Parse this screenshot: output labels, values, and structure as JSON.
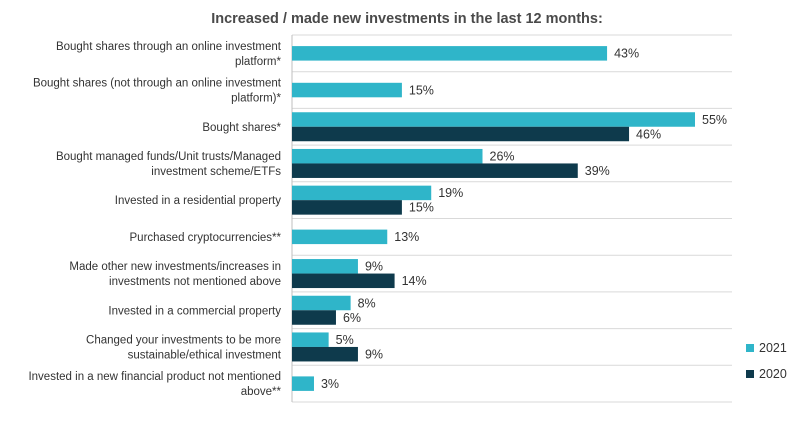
{
  "chart_data": {
    "type": "bar",
    "orientation": "horizontal",
    "title": "Increased / made new investments in the last 12 months:",
    "xlabel": "",
    "ylabel": "",
    "xlim": [
      0,
      56
    ],
    "grid": true,
    "legend_position": "right",
    "value_suffix": "%",
    "categories": [
      [
        "Bought shares through an online investment",
        "platform*"
      ],
      [
        "Bought shares (not through an online investment",
        "platform)*"
      ],
      [
        "Bought shares*"
      ],
      [
        "Bought managed funds/Unit trusts/Managed",
        "investment scheme/ETFs"
      ],
      [
        "Invested in a residential property"
      ],
      [
        "Purchased cryptocurrencies**"
      ],
      [
        "Made other new investments/increases in",
        "investments not mentioned above"
      ],
      [
        "Invested in a commercial property"
      ],
      [
        "Changed your investments to be more",
        "sustainable/ethical investment"
      ],
      [
        "Invested in a new financial product not mentioned",
        "above**"
      ]
    ],
    "series": [
      {
        "name": "2021",
        "color": "#2fb5c9",
        "values": [
          43,
          15,
          55,
          26,
          19,
          13,
          9,
          8,
          5,
          3
        ]
      },
      {
        "name": "2020",
        "color": "#0e3a4c",
        "values": [
          null,
          null,
          46,
          39,
          15,
          null,
          14,
          6,
          9,
          null
        ]
      }
    ]
  }
}
